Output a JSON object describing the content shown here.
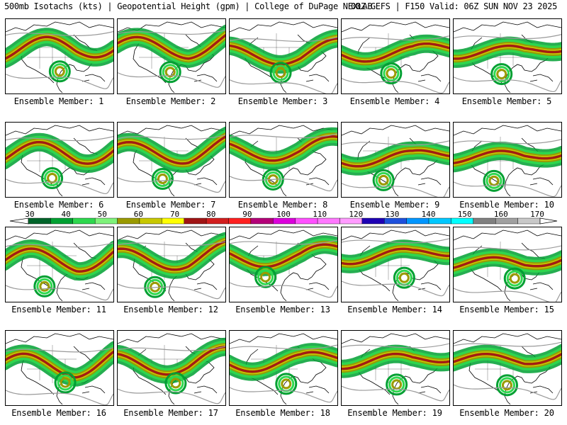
{
  "header": {
    "left": "500mb Isotachs (kts) | Geopotential Height (gpm) | College of DuPage NEXLAB",
    "right": "00Z GEFS | F150 Valid: 06Z SUN NOV 23 2025"
  },
  "colors": {
    "outline": "#000000",
    "height_contour": "#9a9a9a"
  },
  "colorbar": {
    "units": "kts",
    "labels": [
      "30",
      "40",
      "50",
      "60",
      "70",
      "80",
      "90",
      "100",
      "110",
      "120",
      "130",
      "140",
      "150",
      "160",
      "170"
    ],
    "colors": [
      "#00642a",
      "#00a032",
      "#2ed84e",
      "#7ef27a",
      "#9a9a00",
      "#c8c800",
      "#ffff00",
      "#a01414",
      "#d21e1e",
      "#ff2020",
      "#b40078",
      "#dc00dc",
      "#ff50ff",
      "#ff78ff",
      "#ff9bff",
      "#1e00b4",
      "#1e50dc",
      "#0096ff",
      "#00c8ff",
      "#00ffff",
      "#808080",
      "#a0a0a0",
      "#c8c8c8"
    ]
  },
  "panels": [
    {
      "caption": "Ensemble Member: 1"
    },
    {
      "caption": "Ensemble Member: 2"
    },
    {
      "caption": "Ensemble Member: 3"
    },
    {
      "caption": "Ensemble Member: 4"
    },
    {
      "caption": "Ensemble Member: 5"
    },
    {
      "caption": "Ensemble Member: 6"
    },
    {
      "caption": "Ensemble Member: 7"
    },
    {
      "caption": "Ensemble Member: 8"
    },
    {
      "caption": "Ensemble Member: 9"
    },
    {
      "caption": "Ensemble Member: 10"
    },
    {
      "caption": "Ensemble Member: 11"
    },
    {
      "caption": "Ensemble Member: 12"
    },
    {
      "caption": "Ensemble Member: 13"
    },
    {
      "caption": "Ensemble Member: 14"
    },
    {
      "caption": "Ensemble Member: 15"
    },
    {
      "caption": "Ensemble Member: 16"
    },
    {
      "caption": "Ensemble Member: 17"
    },
    {
      "caption": "Ensemble Member: 18"
    },
    {
      "caption": "Ensemble Member: 19"
    },
    {
      "caption": "Ensemble Member: 20"
    }
  ]
}
